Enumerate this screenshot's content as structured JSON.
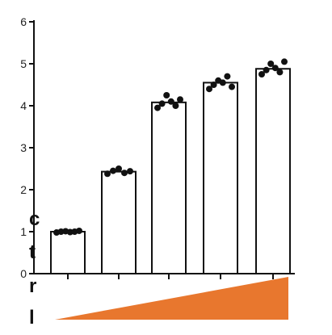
{
  "chart_data": {
    "type": "bar",
    "categories": [
      "",
      "",
      "",
      "",
      ""
    ],
    "values": [
      1.0,
      2.43,
      4.08,
      4.55,
      4.88
    ],
    "points": [
      [
        0.98,
        1.0,
        1.01,
        0.99,
        1.0,
        1.02
      ],
      [
        2.38,
        2.45,
        2.5,
        2.4,
        2.44
      ],
      [
        3.95,
        4.05,
        4.25,
        4.1,
        4.0,
        4.15
      ],
      [
        4.4,
        4.5,
        4.6,
        4.55,
        4.7,
        4.45
      ],
      [
        4.75,
        4.85,
        5.0,
        4.9,
        4.8,
        5.05
      ]
    ],
    "yticks": [
      "0",
      "1",
      "2",
      "3",
      "4",
      "5",
      "6"
    ],
    "ylim": [
      0,
      6
    ],
    "ramp_color": "#e8772e",
    "side_letters": [
      "c",
      "t",
      "r",
      "l"
    ],
    "grid": false
  }
}
